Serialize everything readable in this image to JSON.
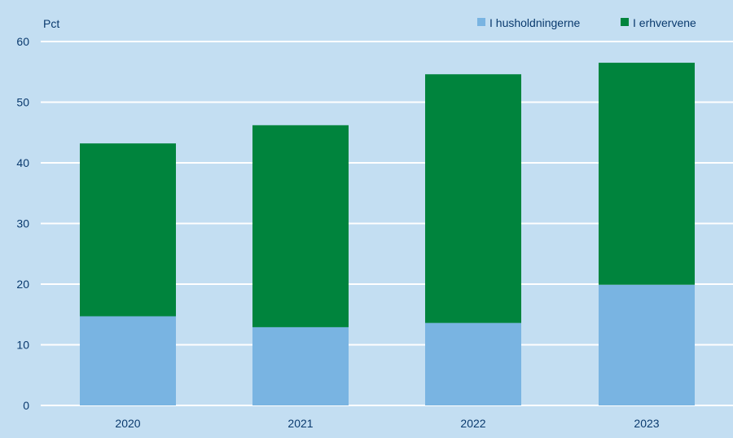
{
  "chart_data": {
    "type": "bar",
    "stacked": true,
    "title": "",
    "ylabel": "Pct",
    "xlabel": "",
    "categories": [
      "2020",
      "2021",
      "2022",
      "2023"
    ],
    "series": [
      {
        "name": "I husholdningerne",
        "color": "#79b4e2",
        "values": [
          14.7,
          12.9,
          13.6,
          19.9
        ]
      },
      {
        "name": "I erhvervene",
        "color": "#00843d",
        "values": [
          28.5,
          33.3,
          41.0,
          36.6
        ]
      }
    ],
    "ylim": [
      0,
      60
    ],
    "yticks": [
      0,
      10,
      20,
      30,
      40,
      50,
      60
    ],
    "grid": true,
    "legend_position": "top-right",
    "colors": {
      "background": "#c3def2",
      "grid": "#ffffff",
      "text": "#0a3a6e"
    }
  }
}
